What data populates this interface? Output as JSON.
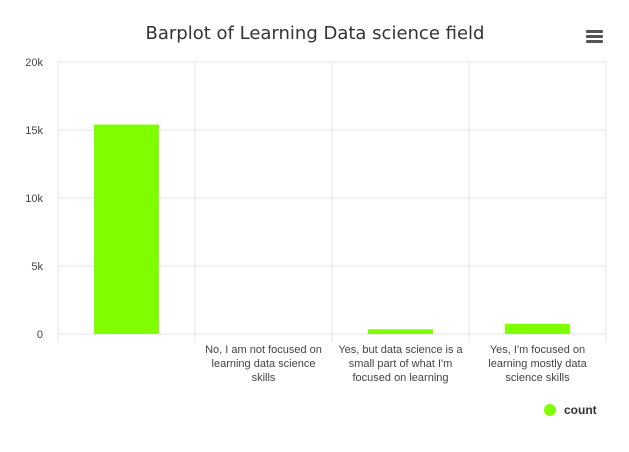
{
  "chart_data": {
    "type": "bar",
    "title": "Barplot of Learning Data science field",
    "xlabel": "",
    "ylabel": "",
    "categories": [
      "",
      "No, I am not focused on learning data science skills",
      "Yes, but data science is a small part of what I'm focused on learning",
      "Yes, I'm focused on learning mostly data science skills"
    ],
    "category_lines": [
      [],
      [
        "No, I am not focused on",
        "learning data science",
        "skills"
      ],
      [
        "Yes, but data science is a",
        "small part of what I'm",
        "focused on learning"
      ],
      [
        "Yes, I'm focused on",
        "learning mostly data",
        "science skills"
      ]
    ],
    "series": [
      {
        "name": "count",
        "values": [
          15400,
          0,
          350,
          750
        ]
      }
    ],
    "ylim": [
      0,
      20000
    ],
    "yticks": [
      0,
      5000,
      10000,
      15000,
      20000
    ],
    "ytick_labels": [
      "0",
      "5k",
      "10k",
      "15k",
      "20k"
    ],
    "grid": true,
    "legend": "bottom-right",
    "colors": {
      "bar": "#7fff00",
      "grid": "#e6e6e6",
      "text": "#333333"
    }
  },
  "ui": {
    "menu_icon": "hamburger-menu-icon"
  }
}
